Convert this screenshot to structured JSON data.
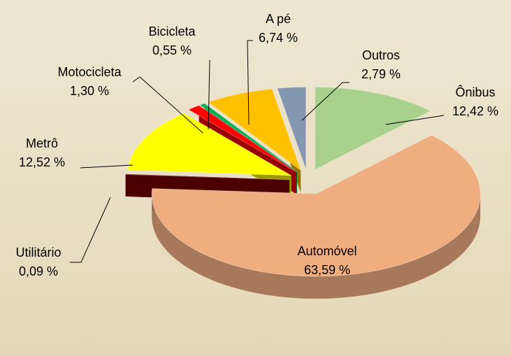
{
  "chart_data": {
    "type": "pie",
    "categories": [
      "Ônibus",
      "Automóvel",
      "Utilitário",
      "Metrô",
      "Motocicleta",
      "Bicicleta",
      "A pé",
      "Outros"
    ],
    "values": [
      12.42,
      63.59,
      0.09,
      12.52,
      1.3,
      0.55,
      6.74,
      2.79
    ],
    "value_labels": [
      "12,42 %",
      "63,59 %",
      "0,09 %",
      "12,52 %",
      "1,30 %",
      "0,55 %",
      "6,74 %",
      "2,79 %"
    ],
    "colors": [
      "#a9d18e",
      "#f0ad80",
      "#7f0000",
      "#ffff00",
      "#ff0000",
      "#00b050",
      "#ffc000",
      "#8497b0"
    ]
  }
}
